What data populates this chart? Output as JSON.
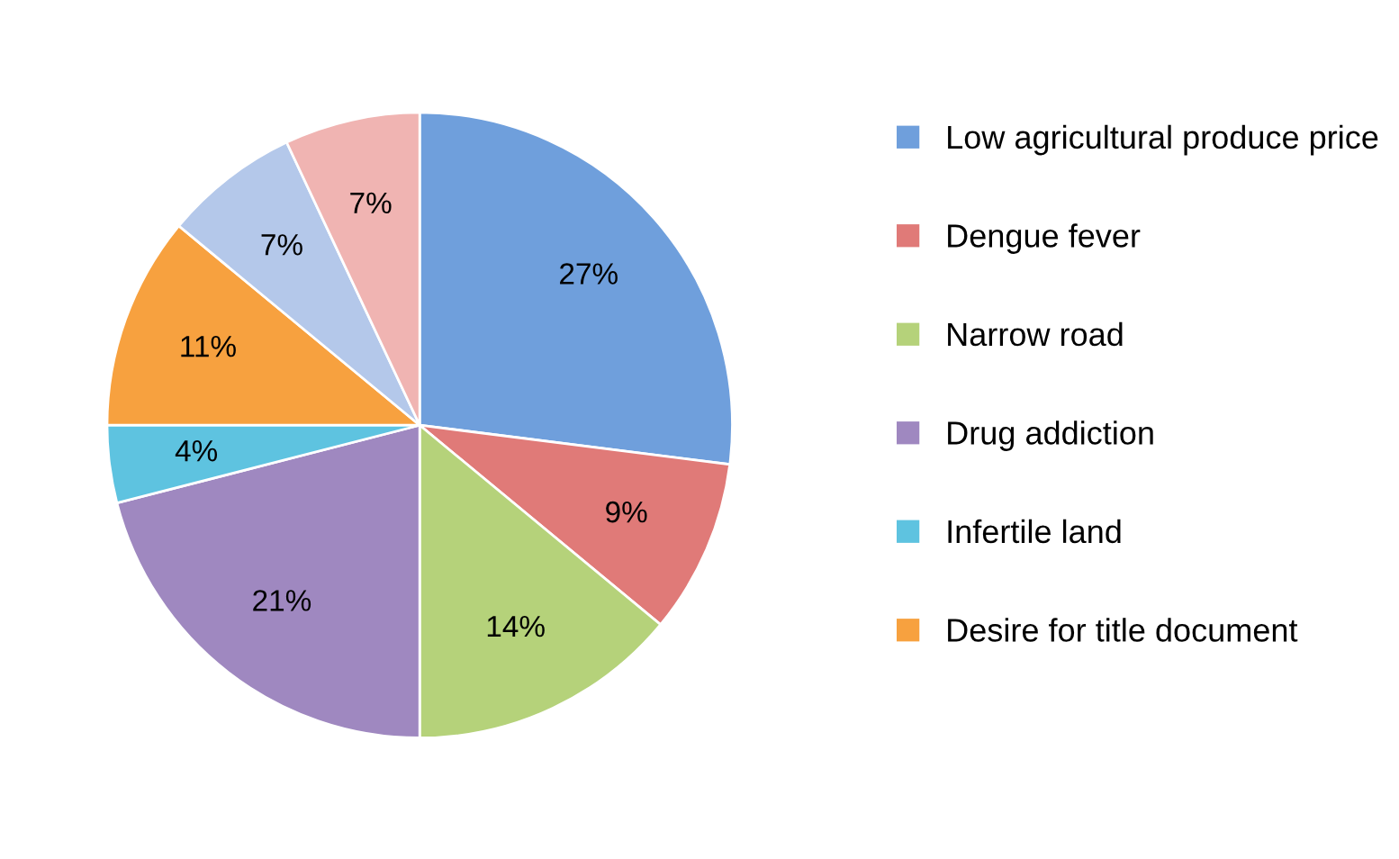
{
  "chart_data": {
    "type": "pie",
    "categories": [
      "Low agricultural produce price",
      "Dengue fever",
      "Narrow road",
      "Drug addiction",
      "Infertile land",
      "Desire for title document",
      null,
      null
    ],
    "values": [
      27,
      9,
      14,
      21,
      4,
      11,
      7,
      7
    ],
    "value_labels": [
      "27%",
      "9%",
      "14%",
      "21%",
      "4%",
      "11%",
      "7%",
      "7%"
    ],
    "colors": [
      "#6f9fdc",
      "#e07a78",
      "#b5d27a",
      "#9f88c0",
      "#5ec3e0",
      "#f7a13f",
      "#b4c8ea",
      "#f0b4b2"
    ],
    "legend": "right"
  }
}
